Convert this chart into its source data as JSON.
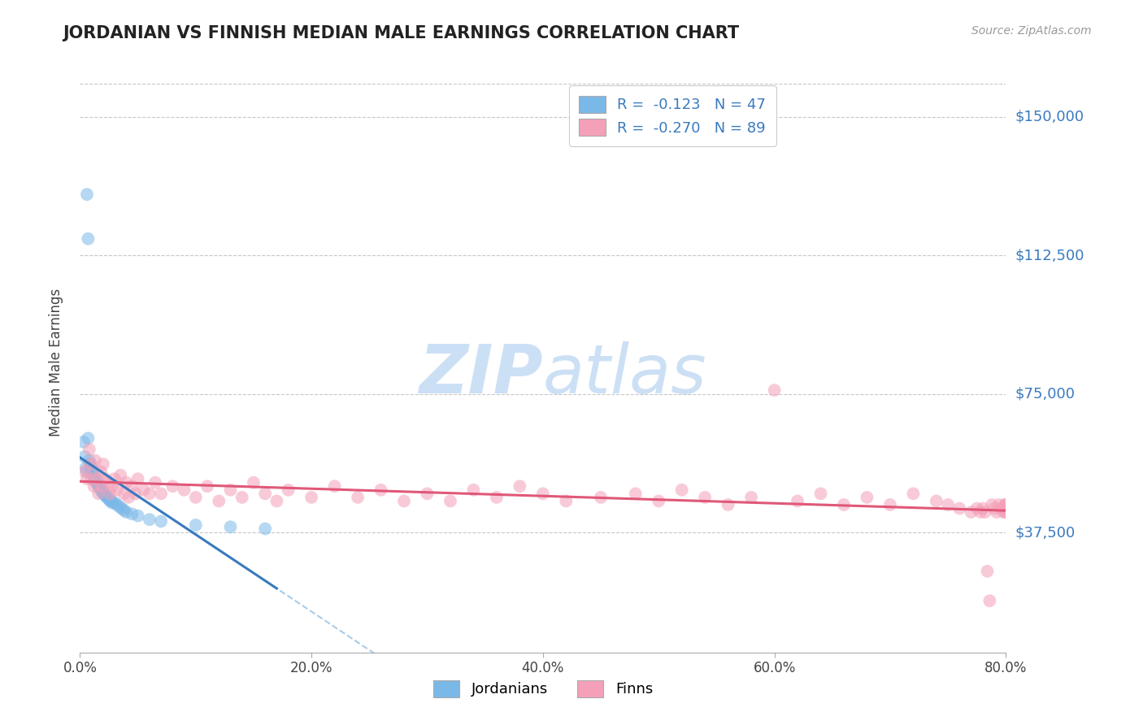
{
  "title": "JORDANIAN VS FINNISH MEDIAN MALE EARNINGS CORRELATION CHART",
  "source": "Source: ZipAtlas.com",
  "ylabel": "Median Male Earnings",
  "jordanians_color": "#7ab8e8",
  "finns_color": "#f4a0b8",
  "trend_jordan_color": "#3a7abf",
  "trend_finn_color": "#e05878",
  "dashed_color": "#a8cce8",
  "background_color": "#ffffff",
  "grid_color": "#c8c8c8",
  "watermark_color": "#cce0f5",
  "legend_label_color": "#3a7abf",
  "ytick_color": "#3a7abf",
  "xmin": 0.0,
  "xmax": 0.8,
  "ymin": 5000,
  "ymax": 162000,
  "yticks": [
    37500,
    75000,
    112500,
    150000
  ],
  "ytick_labels": [
    "$37,500",
    "$75,000",
    "$112,500",
    "$150,000"
  ],
  "xticks": [
    0.0,
    0.2,
    0.4,
    0.6,
    0.8
  ],
  "xtick_labels": [
    "0.0%",
    "20.0%",
    "40.0%",
    "60.0%",
    "80.0%"
  ],
  "legend_r1": "R =  -0.123",
  "legend_n1": "N = 47",
  "legend_r2": "R =  -0.270",
  "legend_n2": "N = 89",
  "bottom_legend_labels": [
    "Jordanians",
    "Finns"
  ],
  "jordan_x": [
    0.006,
    0.007,
    0.003,
    0.004,
    0.005,
    0.006,
    0.007,
    0.008,
    0.009,
    0.01,
    0.01,
    0.011,
    0.012,
    0.013,
    0.013,
    0.014,
    0.015,
    0.015,
    0.016,
    0.016,
    0.017,
    0.018,
    0.018,
    0.019,
    0.02,
    0.02,
    0.021,
    0.022,
    0.023,
    0.024,
    0.025,
    0.026,
    0.027,
    0.028,
    0.03,
    0.032,
    0.034,
    0.036,
    0.038,
    0.04,
    0.045,
    0.05,
    0.06,
    0.07,
    0.1,
    0.13,
    0.16
  ],
  "jordan_y": [
    129000,
    117000,
    62000,
    58000,
    55000,
    54000,
    63000,
    57000,
    56000,
    55000,
    54000,
    53000,
    53000,
    52000,
    51500,
    51000,
    51000,
    50500,
    50000,
    50000,
    50000,
    49500,
    49000,
    48500,
    48500,
    48000,
    48000,
    47500,
    47000,
    47000,
    46500,
    46000,
    46000,
    45500,
    45500,
    45000,
    44500,
    44000,
    43500,
    43000,
    42500,
    42000,
    41000,
    40500,
    39500,
    39000,
    38500
  ],
  "finn_x": [
    0.004,
    0.006,
    0.008,
    0.009,
    0.01,
    0.012,
    0.013,
    0.015,
    0.016,
    0.018,
    0.019,
    0.02,
    0.022,
    0.024,
    0.026,
    0.028,
    0.03,
    0.032,
    0.035,
    0.038,
    0.04,
    0.042,
    0.045,
    0.048,
    0.05,
    0.055,
    0.06,
    0.065,
    0.07,
    0.08,
    0.09,
    0.1,
    0.11,
    0.12,
    0.13,
    0.14,
    0.15,
    0.16,
    0.17,
    0.18,
    0.2,
    0.22,
    0.24,
    0.26,
    0.28,
    0.3,
    0.32,
    0.34,
    0.36,
    0.38,
    0.4,
    0.42,
    0.45,
    0.48,
    0.5,
    0.52,
    0.54,
    0.56,
    0.58,
    0.6,
    0.62,
    0.64,
    0.66,
    0.68,
    0.7,
    0.72,
    0.74,
    0.75,
    0.76,
    0.77,
    0.775,
    0.778,
    0.78,
    0.782,
    0.784,
    0.786,
    0.788,
    0.79,
    0.792,
    0.794,
    0.796,
    0.798,
    0.799,
    0.8,
    0.8,
    0.8,
    0.8,
    0.8,
    0.8
  ],
  "finn_y": [
    54000,
    52000,
    60000,
    56000,
    52000,
    50000,
    57000,
    52000,
    48000,
    54000,
    50000,
    56000,
    52000,
    51000,
    48000,
    50000,
    52000,
    49000,
    53000,
    48000,
    51000,
    47000,
    50000,
    48000,
    52000,
    49000,
    48000,
    51000,
    48000,
    50000,
    49000,
    47000,
    50000,
    46000,
    49000,
    47000,
    51000,
    48000,
    46000,
    49000,
    47000,
    50000,
    47000,
    49000,
    46000,
    48000,
    46000,
    49000,
    47000,
    50000,
    48000,
    46000,
    47000,
    48000,
    46000,
    49000,
    47000,
    45000,
    47000,
    76000,
    46000,
    48000,
    45000,
    47000,
    45000,
    48000,
    46000,
    45000,
    44000,
    43000,
    44000,
    43000,
    44000,
    43000,
    27000,
    19000,
    45000,
    44000,
    43000,
    45000,
    44000,
    43000,
    45000,
    44000,
    43000,
    45000,
    44000,
    43000,
    45000
  ]
}
